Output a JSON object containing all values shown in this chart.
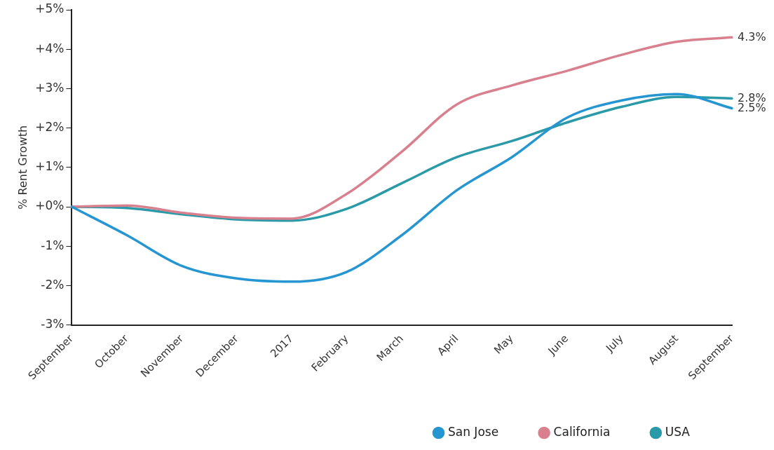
{
  "chart_data": {
    "type": "line",
    "ylabel": "% Rent Growth",
    "categories": [
      "September",
      "October",
      "November",
      "December",
      "2017",
      "February",
      "March",
      "April",
      "May",
      "June",
      "July",
      "August",
      "September"
    ],
    "series": [
      {
        "name": "San Jose",
        "color": "#2596d1",
        "values": [
          0,
          -0.72,
          -1.5,
          -1.82,
          -1.9,
          -1.65,
          -0.72,
          0.42,
          1.26,
          2.26,
          2.7,
          2.86,
          2.5
        ],
        "value_labels": [
          null,
          null,
          null,
          null,
          null,
          null,
          null,
          null,
          null,
          null,
          null,
          null,
          "2.5%"
        ]
      },
      {
        "name": "California",
        "color": "#d9808f",
        "values": [
          0,
          0.03,
          -0.15,
          -0.28,
          -0.3,
          0.33,
          1.4,
          2.6,
          3.08,
          3.45,
          3.86,
          4.19,
          4.3
        ],
        "value_labels": [
          null,
          null,
          null,
          null,
          null,
          null,
          null,
          null,
          null,
          null,
          null,
          null,
          "4.3%"
        ]
      },
      {
        "name": "USA",
        "color": "#2a9aa8",
        "values": [
          0,
          -0.03,
          -0.19,
          -0.32,
          -0.35,
          -0.05,
          0.6,
          1.26,
          1.67,
          2.14,
          2.54,
          2.79,
          2.75
        ],
        "value_labels": [
          null,
          null,
          null,
          null,
          null,
          null,
          null,
          null,
          null,
          null,
          null,
          null,
          "2.8%"
        ]
      }
    ],
    "ylim": [
      -3,
      5
    ],
    "yticks": [
      {
        "value": -3,
        "label": "-3%"
      },
      {
        "value": -2,
        "label": "-2%"
      },
      {
        "value": -1,
        "label": "-1%"
      },
      {
        "value": 0,
        "label": "+0%"
      },
      {
        "value": 1,
        "label": "+1%"
      },
      {
        "value": 2,
        "label": "+2%"
      },
      {
        "value": 3,
        "label": "+3%"
      },
      {
        "value": 4,
        "label": "+4%"
      },
      {
        "value": 5,
        "label": "+5%"
      }
    ],
    "grid": false,
    "legend": "bottom right",
    "marker": "none",
    "line_style": "solid"
  }
}
